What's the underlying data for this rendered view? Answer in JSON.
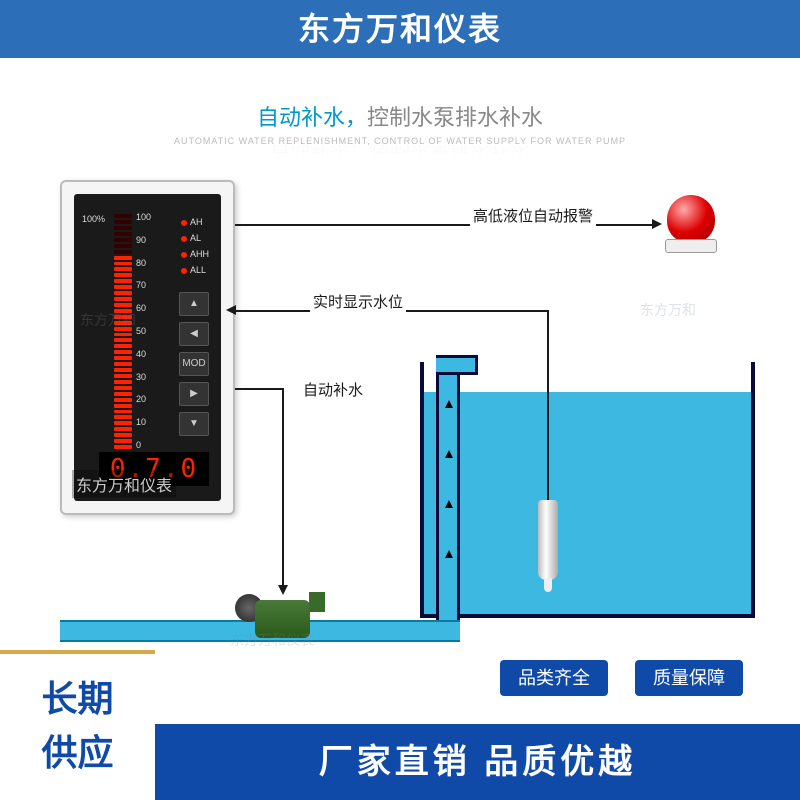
{
  "header": {
    "title": "东方万和仪表"
  },
  "subtitle": {
    "colored": "自动补水，",
    "gray": "控制水泵排水补水",
    "en": "AUTOMATIC WATER REPLENISHMENT, CONTROL OF WATER SUPPLY FOR WATER PUMP"
  },
  "meter": {
    "scale_top": "100%",
    "scale": [
      "100",
      "90",
      "80",
      "70",
      "60",
      "50",
      "40",
      "30",
      "20",
      "10",
      "0"
    ],
    "leds": [
      "AH",
      "AL",
      "AHH",
      "ALL"
    ],
    "buttons": [
      "▲",
      "◀",
      "MOD",
      "▶",
      "▼"
    ],
    "readout": "0.7.0",
    "brand": "东方万和仪表",
    "bar_segments_on": 33,
    "bar_segments_total": 40,
    "bar_color_on": "#ff2200",
    "face_color": "#1a1a1a",
    "case_color": "#f5f5f5"
  },
  "labels": {
    "alarm": "高低液位自动报警",
    "realtime": "实时显示水位",
    "refill": "自动补水"
  },
  "tank": {
    "water_color": "#3db8e0",
    "wall_color": "#0a0a3a",
    "fill_ratio": 0.87
  },
  "watermarks": [
    "东方万和",
    "东方万和仪表"
  ],
  "banners": {
    "left": "长期\n供应",
    "right": "厂家直销 品质优越",
    "badge1": "品类齐全",
    "badge2": "质量保障"
  },
  "colors": {
    "brand_blue": "#0f4aa8",
    "header_blue": "#2c6fb8",
    "accent_cyan": "#0099cc",
    "gold": "#d4a94a"
  }
}
